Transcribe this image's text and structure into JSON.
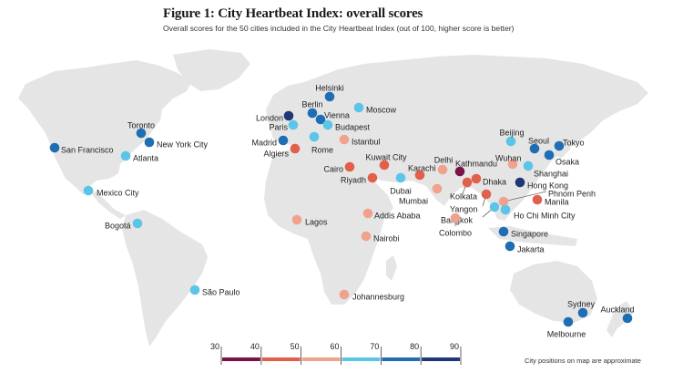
{
  "header": {
    "title": "Figure 1: City Heartbeat Index: overall scores",
    "subtitle": "Overall scores for the 50 cities included in the City Heartbeat Index (out of 100, higher score is better)"
  },
  "note": "City positions on map are approximate",
  "colors": {
    "land": "#e5e5e5",
    "band_30_40": "#7b1248",
    "band_40_50": "#e2604a",
    "band_50_60": "#f0a28f",
    "band_60_70": "#5bc5e8",
    "band_70_80": "#1f6db3",
    "band_80_90": "#1f3777"
  },
  "legend": {
    "ticks": [
      "30",
      "40",
      "50",
      "60",
      "70",
      "80",
      "90"
    ],
    "bands": [
      {
        "from": 30,
        "to": 40,
        "color": "#7b1248"
      },
      {
        "from": 40,
        "to": 50,
        "color": "#e2604a"
      },
      {
        "from": 50,
        "to": 60,
        "color": "#f0a28f"
      },
      {
        "from": 60,
        "to": 70,
        "color": "#5bc5e8"
      },
      {
        "from": 70,
        "to": 80,
        "color": "#1f6db3"
      },
      {
        "from": 80,
        "to": 90,
        "color": "#1f3777"
      }
    ]
  },
  "cities": [
    {
      "name": "Helsinki",
      "band": "70-80"
    },
    {
      "name": "Moscow",
      "band": "60-70"
    },
    {
      "name": "Berlin",
      "band": "70-80"
    },
    {
      "name": "Vienna",
      "band": "70-80"
    },
    {
      "name": "London",
      "band": "80-90"
    },
    {
      "name": "Paris",
      "band": "60-70"
    },
    {
      "name": "Budapest",
      "band": "60-70"
    },
    {
      "name": "Toronto",
      "band": "70-80"
    },
    {
      "name": "New York City",
      "band": "70-80"
    },
    {
      "name": "San Francisco",
      "band": "70-80"
    },
    {
      "name": "Madrid",
      "band": "70-80"
    },
    {
      "name": "Rome",
      "band": "60-70"
    },
    {
      "name": "Istanbul",
      "band": "50-60"
    },
    {
      "name": "Algiers",
      "band": "40-50"
    },
    {
      "name": "Atlanta",
      "band": "60-70"
    },
    {
      "name": "Cairo",
      "band": "40-50"
    },
    {
      "name": "Kuwait City",
      "band": "40-50"
    },
    {
      "name": "Riyadh",
      "band": "40-50"
    },
    {
      "name": "Dubai",
      "band": "60-70"
    },
    {
      "name": "Karachi",
      "band": "40-50"
    },
    {
      "name": "Delhi",
      "band": "50-60"
    },
    {
      "name": "Kathmandu",
      "band": "30-40"
    },
    {
      "name": "Dhaka",
      "band": "40-50"
    },
    {
      "name": "Mumbai",
      "band": "50-60"
    },
    {
      "name": "Kolkata",
      "band": "40-50"
    },
    {
      "name": "Yangon",
      "band": "40-50"
    },
    {
      "name": "Bangkok",
      "band": "60-70"
    },
    {
      "name": "Colombo",
      "band": "50-60"
    },
    {
      "name": "Beijing",
      "band": "60-70"
    },
    {
      "name": "Seoul",
      "band": "70-80"
    },
    {
      "name": "Tokyo",
      "band": "70-80"
    },
    {
      "name": "Osaka",
      "band": "70-80"
    },
    {
      "name": "Wuhan",
      "band": "50-60"
    },
    {
      "name": "Shanghai",
      "band": "60-70"
    },
    {
      "name": "Hong Kong",
      "band": "80-90"
    },
    {
      "name": "Manila",
      "band": "40-50"
    },
    {
      "name": "Phnom Penh",
      "band": "50-60"
    },
    {
      "name": "Ho Chi Minh City",
      "band": "60-70"
    },
    {
      "name": "Singapore",
      "band": "70-80"
    },
    {
      "name": "Jakarta",
      "band": "70-80"
    },
    {
      "name": "Mexico City",
      "band": "60-70"
    },
    {
      "name": "Bogotá",
      "band": "60-70"
    },
    {
      "name": "Lagos",
      "band": "50-60"
    },
    {
      "name": "Addis Ababa",
      "band": "50-60"
    },
    {
      "name": "Nairobi",
      "band": "50-60"
    },
    {
      "name": "São Paulo",
      "band": "60-70"
    },
    {
      "name": "Johannesburg",
      "band": "50-60"
    },
    {
      "name": "Sydney",
      "band": "70-80"
    },
    {
      "name": "Melbourne",
      "band": "70-80"
    },
    {
      "name": "Auckland",
      "band": "70-80"
    }
  ]
}
